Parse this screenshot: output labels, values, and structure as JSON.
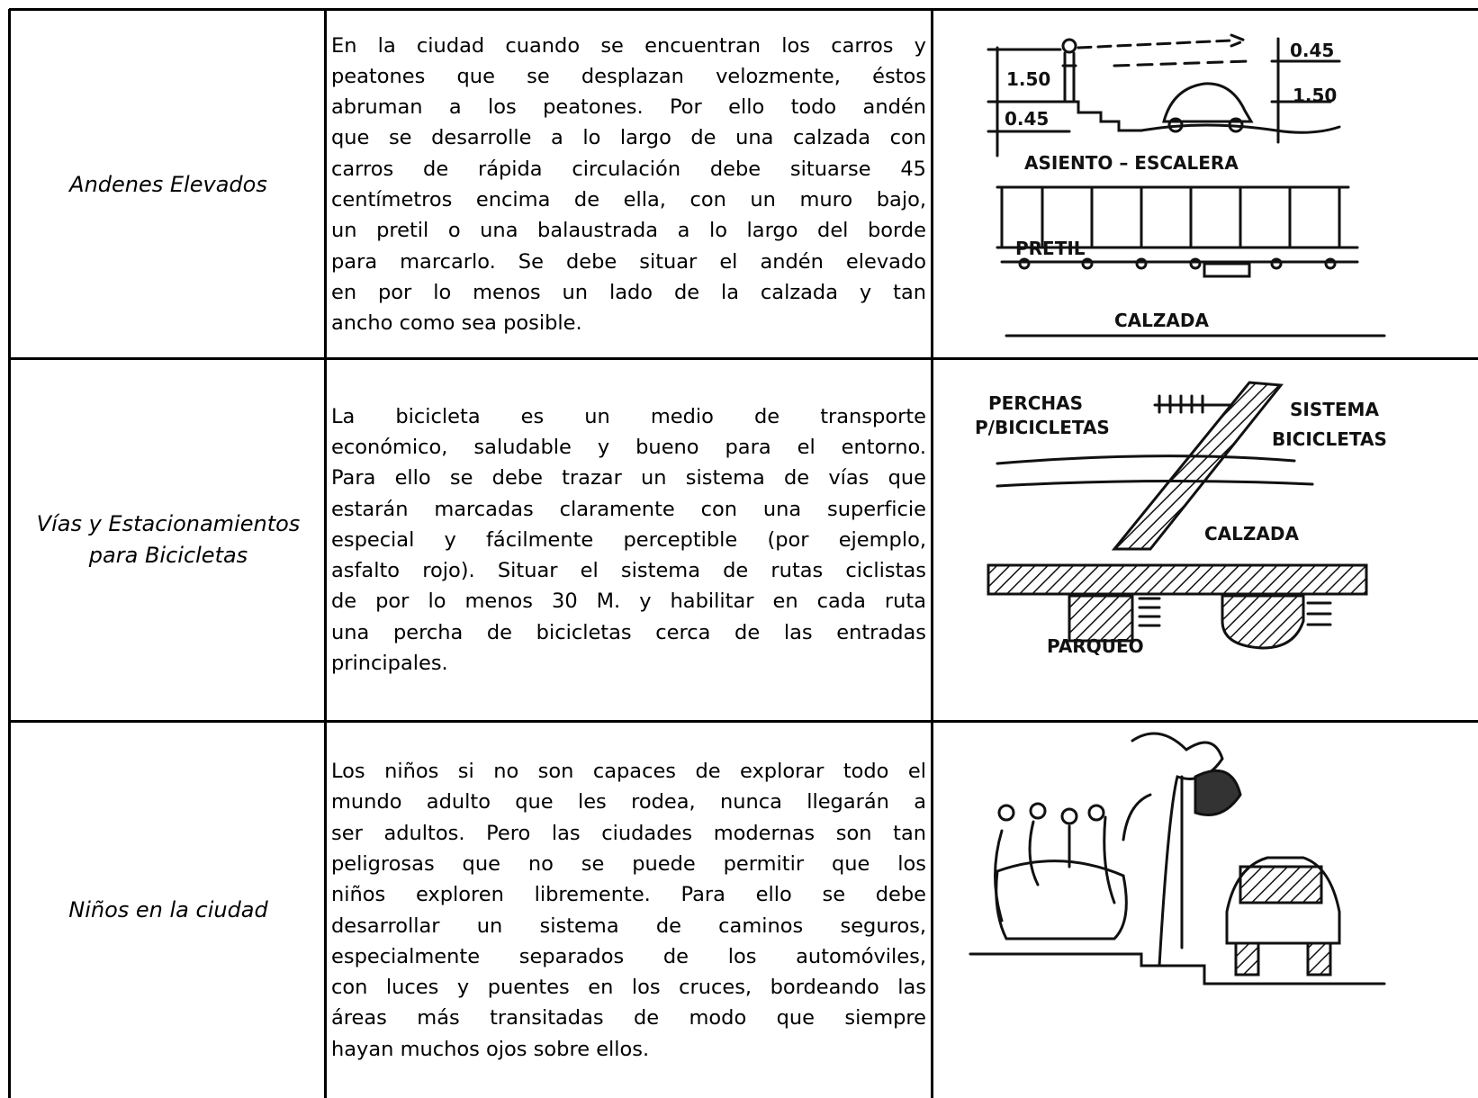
{
  "table": {
    "rows": [
      {
        "title": "Andenes Elevados",
        "text_lines": [
          "En la ciudad cuando se encuentran los carros y",
          "peatones que se desplazan velozmente, éstos",
          "abruman a los peatones. Por ello todo andén",
          "que se desarrolle a lo largo de una calzada con",
          "carros de rápida circulación debe situarse 45",
          "centímetros encima de ella, con un muro bajo,",
          "un pretil o una balaustrada a lo largo del borde",
          "para marcarlo. Se debe situar el andén elevado",
          "en por lo menos un lado de la calzada y tan",
          "ancho como sea posible."
        ],
        "sketch_labels": [
          "1.50",
          "0.45",
          "0.45",
          "1.50",
          "ASIENTO – ESCALERA",
          "PRETIL",
          "CALZADA"
        ]
      },
      {
        "title": "Vías y Estacionamientos para Bicicletas",
        "text_lines": [
          "La bicicleta es un medio de transporte",
          "económico, saludable y bueno para el entorno.",
          "Para ello se debe trazar un sistema de vías que",
          "estarán marcadas claramente con una superficie",
          "especial y fácilmente perceptible (por ejemplo,",
          "asfalto rojo). Situar el sistema de rutas ciclistas",
          "de por lo menos 30 M. y habilitar en cada ruta",
          "una percha de bicicletas cerca de las entradas",
          "principales."
        ],
        "sketch_labels": [
          "PERCHAS",
          "P/BICICLETAS",
          "SISTEMA",
          "BICICLETAS",
          "CALZADA",
          "PARQUEO"
        ]
      },
      {
        "title": "Niños en la ciudad",
        "text_lines": [
          "Los niños si no son capaces de explorar todo el",
          "mundo adulto que les rodea, nunca llegarán a",
          "ser adultos. Pero las ciudades modernas son tan",
          "peligrosas que no se puede permitir que los",
          "niños exploren libremente. Para ello se debe",
          "desarrollar un sistema de caminos seguros,",
          "especialmente separados de los automóviles,",
          "con luces y puentes en los cruces, bordeando las",
          "áreas más transitadas de modo que siempre",
          "hayan muchos ojos sobre ellos."
        ]
      }
    ]
  }
}
